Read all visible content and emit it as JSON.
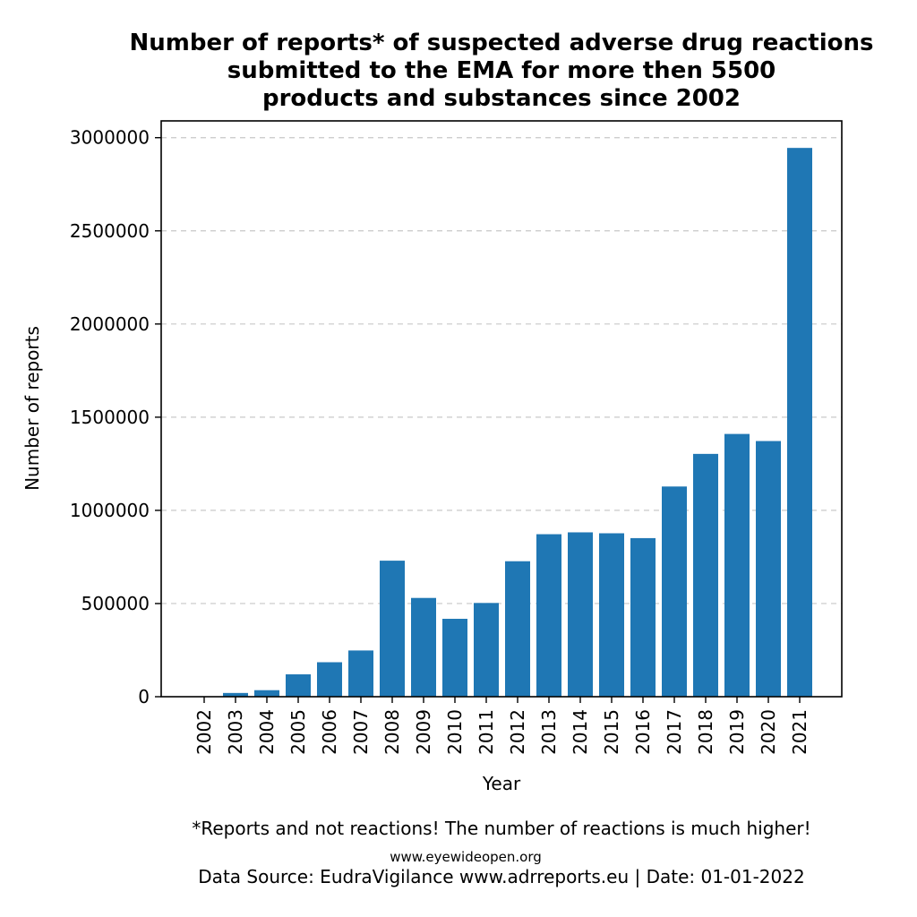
{
  "chart_data": {
    "type": "bar",
    "title": [
      "Number of reports* of suspected adverse drug reactions",
      "submitted to the EMA for more then 5500",
      "products and substances since 2002"
    ],
    "xlabel": "Year",
    "ylabel": "Number of reports",
    "categories": [
      "2002",
      "2003",
      "2004",
      "2005",
      "2006",
      "2007",
      "2008",
      "2009",
      "2010",
      "2011",
      "2012",
      "2013",
      "2014",
      "2015",
      "2016",
      "2017",
      "2018",
      "2019",
      "2020",
      "2021"
    ],
    "values": [
      2000,
      20000,
      35000,
      120000,
      185000,
      248000,
      730000,
      530000,
      418000,
      503000,
      727000,
      872000,
      882000,
      877000,
      851000,
      1128000,
      1303000,
      1410000,
      1372000,
      2945000
    ],
    "ylim": [
      0,
      3090000
    ],
    "yticks": [
      0,
      500000,
      1000000,
      1500000,
      2000000,
      2500000,
      3000000
    ],
    "ytick_labels": [
      "0",
      "500000",
      "1000000",
      "1500000",
      "2000000",
      "2500000",
      "3000000"
    ],
    "grid": "horizontal dashed",
    "bar_color": "#1f77b4"
  },
  "footnote": "*Reports and not reactions! The number of reactions is much higher!",
  "watermark": "www.eyewideopen.org",
  "source": "Data Source: EudraVigilance www.adrreports.eu | Date: 01-01-2022"
}
